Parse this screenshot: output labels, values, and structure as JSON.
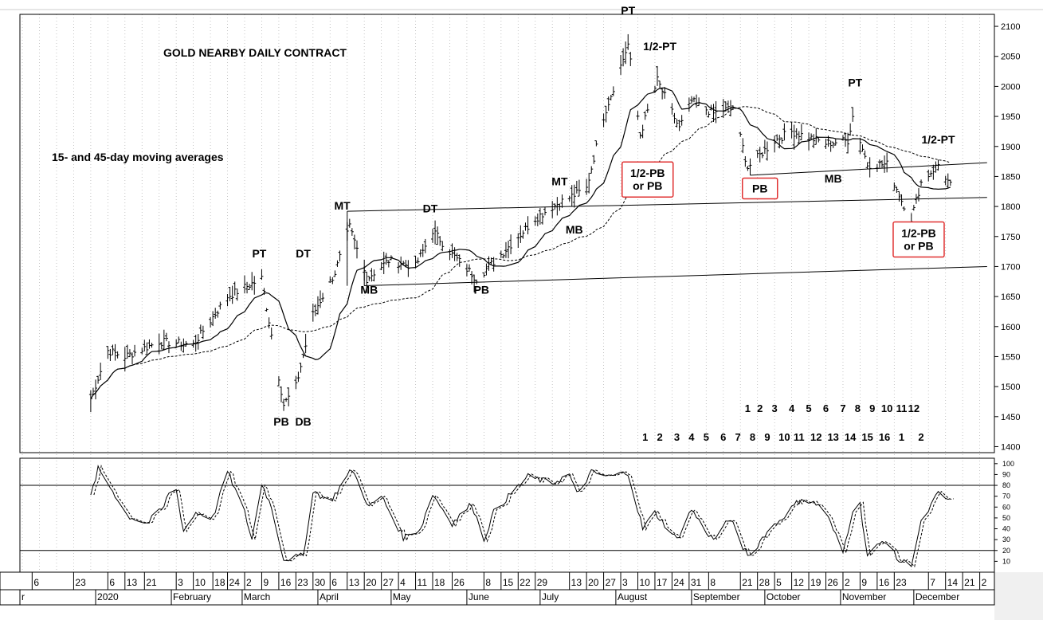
{
  "chart_data": [
    {
      "type": "candlestick-bars",
      "title": "GOLD NEARBY DAILY CONTRACT",
      "subtitle": "15- and 45-day moving averages",
      "ylim": [
        1390,
        2120
      ],
      "y_ticks": [
        1400,
        1450,
        1500,
        1550,
        1600,
        1650,
        1700,
        1750,
        1800,
        1850,
        1900,
        1950,
        2000,
        2050,
        2100
      ],
      "grid": "vertical dotted",
      "price_anchor_points": [
        {
          "x": "2019-12-30",
          "y": 1480
        },
        {
          "x": "2020-01-06",
          "y": 1560
        },
        {
          "x": "2020-01-13",
          "y": 1550
        },
        {
          "x": "2020-01-27",
          "y": 1575
        },
        {
          "x": "2020-02-10",
          "y": 1570
        },
        {
          "x": "2020-02-24",
          "y": 1650
        },
        {
          "x": "2020-03-09",
          "y": 1680
        },
        {
          "x": "2020-03-18",
          "y": 1470
        },
        {
          "x": "2020-03-23",
          "y": 1500
        },
        {
          "x": "2020-03-30",
          "y": 1620
        },
        {
          "x": "2020-04-08",
          "y": 1690
        },
        {
          "x": "2020-04-14",
          "y": 1765
        },
        {
          "x": "2020-04-21",
          "y": 1680
        },
        {
          "x": "2020-04-30",
          "y": 1710
        },
        {
          "x": "2020-05-11",
          "y": 1700
        },
        {
          "x": "2020-05-18",
          "y": 1760
        },
        {
          "x": "2020-05-26",
          "y": 1720
        },
        {
          "x": "2020-06-05",
          "y": 1680
        },
        {
          "x": "2020-06-15",
          "y": 1720
        },
        {
          "x": "2020-06-29",
          "y": 1780
        },
        {
          "x": "2020-07-06",
          "y": 1800
        },
        {
          "x": "2020-07-20",
          "y": 1830
        },
        {
          "x": "2020-07-27",
          "y": 1950
        },
        {
          "x": "2020-08-06",
          "y": 2070
        },
        {
          "x": "2020-08-11",
          "y": 1920
        },
        {
          "x": "2020-08-18",
          "y": 2010
        },
        {
          "x": "2020-08-27",
          "y": 1930
        },
        {
          "x": "2020-09-01",
          "y": 1975
        },
        {
          "x": "2020-09-10",
          "y": 1955
        },
        {
          "x": "2020-09-18",
          "y": 1965
        },
        {
          "x": "2020-09-24",
          "y": 1865
        },
        {
          "x": "2020-10-05",
          "y": 1910
        },
        {
          "x": "2020-10-12",
          "y": 1925
        },
        {
          "x": "2020-10-26",
          "y": 1905
        },
        {
          "x": "2020-11-04",
          "y": 1910
        },
        {
          "x": "2020-11-06",
          "y": 1950
        },
        {
          "x": "2020-11-12",
          "y": 1870
        },
        {
          "x": "2020-11-20",
          "y": 1870
        },
        {
          "x": "2020-11-26",
          "y": 1810
        },
        {
          "x": "2020-11-30",
          "y": 1780
        },
        {
          "x": "2020-12-04",
          "y": 1840
        },
        {
          "x": "2020-12-11",
          "y": 1870
        },
        {
          "x": "2020-12-16",
          "y": 1835
        }
      ],
      "trendlines": [
        {
          "from": {
            "x": "2020-04-13",
            "y": 1792
          },
          "to": {
            "x": "2020-12-31",
            "y": 1815
          }
        },
        {
          "from": {
            "x": "2020-04-20",
            "y": 1668
          },
          "to": {
            "x": "2020-12-31",
            "y": 1700
          }
        },
        {
          "from": {
            "x": "2020-09-25",
            "y": 1852
          },
          "to": {
            "x": "2020-12-31",
            "y": 1873
          }
        },
        {
          "from": {
            "x": "2020-04-13",
            "y": 1668
          },
          "to": {
            "x": "2020-04-13",
            "y": 1792
          }
        },
        {
          "from": {
            "x": "2020-04-20",
            "y": 1668
          },
          "to": {
            "x": "2020-04-20",
            "y": 1700
          }
        },
        {
          "from": {
            "x": "2020-09-25",
            "y": 1852
          },
          "to": {
            "x": "2020-09-25",
            "y": 1880
          }
        }
      ],
      "annotations": [
        {
          "text": "PT",
          "x": "2020-03-08",
          "y": 1715
        },
        {
          "text": "DT",
          "x": "2020-03-26",
          "y": 1715
        },
        {
          "text": "PB",
          "x": "2020-03-17",
          "y": 1435
        },
        {
          "text": "DB",
          "x": "2020-03-26",
          "y": 1435
        },
        {
          "text": "MT",
          "x": "2020-04-11",
          "y": 1795
        },
        {
          "text": "MB",
          "x": "2020-04-22",
          "y": 1655
        },
        {
          "text": "DT",
          "x": "2020-05-17",
          "y": 1790
        },
        {
          "text": "PB",
          "x": "2020-06-07",
          "y": 1655
        },
        {
          "text": "MT",
          "x": "2020-07-09",
          "y": 1835
        },
        {
          "text": "MB",
          "x": "2020-07-15",
          "y": 1755
        },
        {
          "text": "PT",
          "x": "2020-08-06",
          "y": 2120
        },
        {
          "text": "1/2-PT",
          "x": "2020-08-19",
          "y": 2060
        },
        {
          "text": "PT",
          "x": "2020-11-07",
          "y": 2000
        },
        {
          "text": "1/2-PT",
          "x": "2020-12-11",
          "y": 1905
        },
        {
          "text": "MB",
          "x": "2020-10-29",
          "y": 1840
        }
      ],
      "boxed_annotations": [
        {
          "lines": [
            "1/2-PB",
            "or PB"
          ],
          "x": "2020-08-14",
          "y": 1845
        },
        {
          "lines": [
            "PB"
          ],
          "x": "2020-09-29",
          "y": 1830
        },
        {
          "lines": [
            "1/2-PB",
            "or PB"
          ],
          "x": "2020-12-03",
          "y": 1745
        }
      ],
      "count_row_upper": {
        "labels": [
          "1",
          "2",
          "3",
          "4",
          "5",
          "6",
          "7",
          "8",
          "9",
          "10",
          "11",
          "12"
        ],
        "x": [
          "2020-09-24",
          "2020-09-29",
          "2020-10-05",
          "2020-10-12",
          "2020-10-19",
          "2020-10-26",
          "2020-11-02",
          "2020-11-08",
          "2020-11-14",
          "2020-11-20",
          "2020-11-26",
          "2020-12-01"
        ],
        "y": 1458
      },
      "count_row_lower": {
        "labels": [
          "1",
          "2",
          "3",
          "4",
          "5",
          "6",
          "7",
          "8",
          "9",
          "10",
          "11",
          "12",
          "13",
          "14",
          "15",
          "16",
          "1",
          "2"
        ],
        "x": [
          "2020-08-13",
          "2020-08-19",
          "2020-08-26",
          "2020-09-01",
          "2020-09-07",
          "2020-09-14",
          "2020-09-20",
          "2020-09-26",
          "2020-10-02",
          "2020-10-09",
          "2020-10-15",
          "2020-10-22",
          "2020-10-29",
          "2020-11-05",
          "2020-11-12",
          "2020-11-19",
          "2020-11-26",
          "2020-12-04"
        ],
        "y": 1410
      }
    },
    {
      "type": "line",
      "ylim": [
        0,
        105
      ],
      "y_ticks": [
        10,
        20,
        30,
        40,
        50,
        60,
        70,
        80,
        90,
        100
      ],
      "reference_lines": [
        20,
        80
      ],
      "stochastic_anchor_points": [
        {
          "x": "2019-12-30",
          "y": 70
        },
        {
          "x": "2020-01-02",
          "y": 95
        },
        {
          "x": "2020-01-08",
          "y": 75
        },
        {
          "x": "2020-01-14",
          "y": 52
        },
        {
          "x": "2020-01-22",
          "y": 45
        },
        {
          "x": "2020-01-29",
          "y": 60
        },
        {
          "x": "2020-02-02",
          "y": 88
        },
        {
          "x": "2020-02-06",
          "y": 38
        },
        {
          "x": "2020-02-11",
          "y": 55
        },
        {
          "x": "2020-02-18",
          "y": 50
        },
        {
          "x": "2020-02-24",
          "y": 93
        },
        {
          "x": "2020-03-02",
          "y": 55
        },
        {
          "x": "2020-03-05",
          "y": 30
        },
        {
          "x": "2020-03-09",
          "y": 82
        },
        {
          "x": "2020-03-13",
          "y": 60
        },
        {
          "x": "2020-03-18",
          "y": 12
        },
        {
          "x": "2020-03-26",
          "y": 15
        },
        {
          "x": "2020-03-30",
          "y": 75
        },
        {
          "x": "2020-04-06",
          "y": 65
        },
        {
          "x": "2020-04-15",
          "y": 95
        },
        {
          "x": "2020-04-22",
          "y": 60
        },
        {
          "x": "2020-04-27",
          "y": 70
        },
        {
          "x": "2020-05-06",
          "y": 32
        },
        {
          "x": "2020-05-13",
          "y": 40
        },
        {
          "x": "2020-05-18",
          "y": 72
        },
        {
          "x": "2020-05-26",
          "y": 45
        },
        {
          "x": "2020-06-03",
          "y": 63
        },
        {
          "x": "2020-06-08",
          "y": 30
        },
        {
          "x": "2020-06-12",
          "y": 55
        },
        {
          "x": "2020-06-19",
          "y": 72
        },
        {
          "x": "2020-06-26",
          "y": 88
        },
        {
          "x": "2020-07-06",
          "y": 82
        },
        {
          "x": "2020-07-13",
          "y": 90
        },
        {
          "x": "2020-07-16",
          "y": 72
        },
        {
          "x": "2020-07-22",
          "y": 92
        },
        {
          "x": "2020-07-29",
          "y": 88
        },
        {
          "x": "2020-08-06",
          "y": 92
        },
        {
          "x": "2020-08-12",
          "y": 40
        },
        {
          "x": "2020-08-17",
          "y": 55
        },
        {
          "x": "2020-08-26",
          "y": 30
        },
        {
          "x": "2020-09-01",
          "y": 58
        },
        {
          "x": "2020-09-06",
          "y": 40
        },
        {
          "x": "2020-09-10",
          "y": 30
        },
        {
          "x": "2020-09-17",
          "y": 50
        },
        {
          "x": "2020-09-21",
          "y": 25
        },
        {
          "x": "2020-09-25",
          "y": 15
        },
        {
          "x": "2020-10-01",
          "y": 35
        },
        {
          "x": "2020-10-08",
          "y": 50
        },
        {
          "x": "2020-10-16",
          "y": 68
        },
        {
          "x": "2020-10-25",
          "y": 60
        },
        {
          "x": "2020-11-02",
          "y": 18
        },
        {
          "x": "2020-11-08",
          "y": 78
        },
        {
          "x": "2020-11-12",
          "y": 15
        },
        {
          "x": "2020-11-19",
          "y": 30
        },
        {
          "x": "2020-11-25",
          "y": 10
        },
        {
          "x": "2020-11-30",
          "y": 8
        },
        {
          "x": "2020-12-04",
          "y": 45
        },
        {
          "x": "2020-12-11",
          "y": 73
        },
        {
          "x": "2020-12-16",
          "y": 65
        }
      ]
    }
  ],
  "x_axis": {
    "day_labels": [
      {
        "text": "6",
        "x": "2019-12-06"
      },
      {
        "text": "23",
        "x": "2019-12-23"
      },
      {
        "text": "6",
        "x": "2020-01-06"
      },
      {
        "text": "13",
        "x": "2020-01-13"
      },
      {
        "text": "21",
        "x": "2020-01-21"
      },
      {
        "text": "3",
        "x": "2020-02-03"
      },
      {
        "text": "10",
        "x": "2020-02-10"
      },
      {
        "text": "18",
        "x": "2020-02-18"
      },
      {
        "text": "24",
        "x": "2020-02-24"
      },
      {
        "text": "2",
        "x": "2020-03-02"
      },
      {
        "text": "9",
        "x": "2020-03-09"
      },
      {
        "text": "16",
        "x": "2020-03-16"
      },
      {
        "text": "23",
        "x": "2020-03-23"
      },
      {
        "text": "30",
        "x": "2020-03-30"
      },
      {
        "text": "6",
        "x": "2020-04-06"
      },
      {
        "text": "13",
        "x": "2020-04-13"
      },
      {
        "text": "20",
        "x": "2020-04-20"
      },
      {
        "text": "27",
        "x": "2020-04-27"
      },
      {
        "text": "4",
        "x": "2020-05-04"
      },
      {
        "text": "11",
        "x": "2020-05-11"
      },
      {
        "text": "18",
        "x": "2020-05-18"
      },
      {
        "text": "26",
        "x": "2020-05-26"
      },
      {
        "text": "8",
        "x": "2020-06-08"
      },
      {
        "text": "15",
        "x": "2020-06-15"
      },
      {
        "text": "22",
        "x": "2020-06-22"
      },
      {
        "text": "29",
        "x": "2020-06-29"
      },
      {
        "text": "13",
        "x": "2020-07-13"
      },
      {
        "text": "20",
        "x": "2020-07-20"
      },
      {
        "text": "27",
        "x": "2020-07-27"
      },
      {
        "text": "3",
        "x": "2020-08-03"
      },
      {
        "text": "10",
        "x": "2020-08-10"
      },
      {
        "text": "17",
        "x": "2020-08-17"
      },
      {
        "text": "24",
        "x": "2020-08-24"
      },
      {
        "text": "31",
        "x": "2020-08-31"
      },
      {
        "text": "8",
        "x": "2020-09-08"
      },
      {
        "text": "21",
        "x": "2020-09-21"
      },
      {
        "text": "28",
        "x": "2020-09-28"
      },
      {
        "text": "5",
        "x": "2020-10-05"
      },
      {
        "text": "12",
        "x": "2020-10-12"
      },
      {
        "text": "19",
        "x": "2020-10-19"
      },
      {
        "text": "26",
        "x": "2020-10-26"
      },
      {
        "text": "2",
        "x": "2020-11-02"
      },
      {
        "text": "9",
        "x": "2020-11-09"
      },
      {
        "text": "16",
        "x": "2020-11-16"
      },
      {
        "text": "23",
        "x": "2020-11-23"
      },
      {
        "text": "7",
        "x": "2020-12-07"
      },
      {
        "text": "14",
        "x": "2020-12-14"
      },
      {
        "text": "21",
        "x": "2020-12-21"
      },
      {
        "text": "2",
        "x": "2020-12-28"
      }
    ],
    "month_labels": [
      {
        "text": "r",
        "x": "2019-12-01"
      },
      {
        "text": "2020",
        "x": "2020-01-01"
      },
      {
        "text": "February",
        "x": "2020-02-01"
      },
      {
        "text": "March",
        "x": "2020-03-01"
      },
      {
        "text": "April",
        "x": "2020-04-01"
      },
      {
        "text": "May",
        "x": "2020-05-01"
      },
      {
        "text": "June",
        "x": "2020-06-01"
      },
      {
        "text": "July",
        "x": "2020-07-01"
      },
      {
        "text": "August",
        "x": "2020-08-01"
      },
      {
        "text": "September",
        "x": "2020-09-01"
      },
      {
        "text": "October",
        "x": "2020-10-01"
      },
      {
        "text": "November",
        "x": "2020-11-01"
      },
      {
        "text": "December",
        "x": "2020-12-01"
      }
    ]
  },
  "colors": {
    "box_outline": "#e03030",
    "line": "#000000",
    "grid": "#b8b8b8"
  }
}
